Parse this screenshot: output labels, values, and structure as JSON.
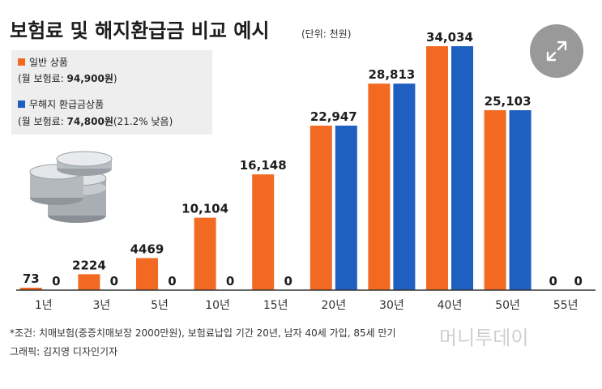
{
  "chart_data": {
    "type": "bar",
    "title": "보험료 및 해지환급금 비교 예시",
    "unit": "(단위: 천원)",
    "categories": [
      "1년",
      "3년",
      "5년",
      "10년",
      "15년",
      "20년",
      "30년",
      "40년",
      "50년",
      "55년"
    ],
    "series": [
      {
        "name": "일반 상품",
        "detail_prefix": "(월 보험료: ",
        "detail_value": "94,900원",
        "detail_suffix": ")",
        "color": "#f26a21",
        "values": [
          73,
          2224,
          4469,
          10104,
          16148,
          22947,
          28813,
          34034,
          25103,
          0
        ],
        "labels": [
          "73",
          "2224",
          "4469",
          "10,104",
          "16,148",
          "22,947",
          "28,813",
          "34,034",
          "25,103",
          "0"
        ]
      },
      {
        "name": "무해지 환급금상품",
        "detail_prefix": "(월 보험료: ",
        "detail_value": "74,800원",
        "detail_suffix": "(21.2% 낮음)",
        "color": "#1f5fbf",
        "values": [
          0,
          0,
          0,
          0,
          0,
          22947,
          28813,
          34034,
          25103,
          0
        ],
        "labels": [
          "0",
          "0",
          "0",
          "0",
          "0",
          "",
          "",
          "",
          "",
          "0"
        ]
      }
    ],
    "ylim": [
      0,
      34034
    ]
  },
  "footnote": {
    "condition": "*조건: 치매보험(중증치매보장 2000만원), 보험료납입 기간 20년, 남자 40세 가입, 85세 만기",
    "credit": "그래픽: 김지영 디자인기자"
  },
  "watermark": "머니투데이",
  "colors": {
    "background": "#ffffff",
    "legend_box": "#eeeeee",
    "baseline": "#333333"
  }
}
